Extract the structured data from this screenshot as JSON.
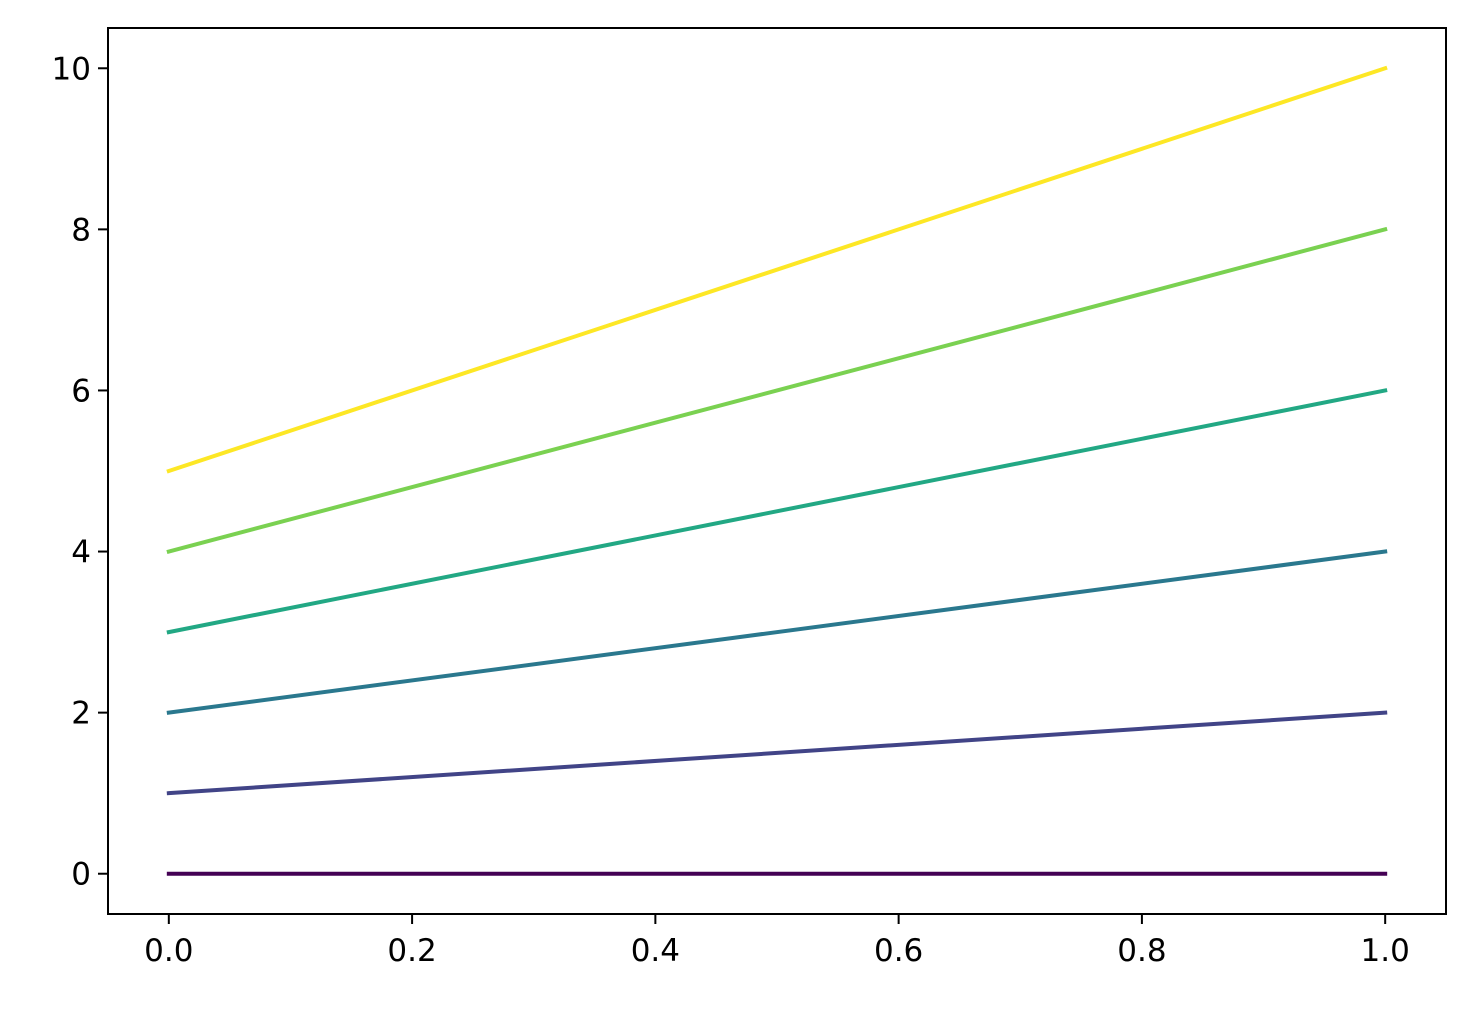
{
  "chart_data": {
    "type": "line",
    "title": "",
    "xlabel": "",
    "ylabel": "",
    "xlim": [
      -0.05,
      1.05
    ],
    "ylim": [
      -0.5,
      10.5
    ],
    "x_ticks": [
      {
        "value": 0.0,
        "label": "0.0"
      },
      {
        "value": 0.2,
        "label": "0.2"
      },
      {
        "value": 0.4,
        "label": "0.4"
      },
      {
        "value": 0.6,
        "label": "0.6"
      },
      {
        "value": 0.8,
        "label": "0.8"
      },
      {
        "value": 1.0,
        "label": "1.0"
      }
    ],
    "y_ticks": [
      {
        "value": 0,
        "label": "0"
      },
      {
        "value": 2,
        "label": "2"
      },
      {
        "value": 4,
        "label": "4"
      },
      {
        "value": 6,
        "label": "6"
      },
      {
        "value": 8,
        "label": "8"
      },
      {
        "value": 10,
        "label": "10"
      }
    ],
    "grid": false,
    "legend": false,
    "series": [
      {
        "x": [
          0,
          1
        ],
        "values": [
          0,
          0
        ],
        "color": "#440154"
      },
      {
        "x": [
          0,
          1
        ],
        "values": [
          1,
          2
        ],
        "color": "#414487"
      },
      {
        "x": [
          0,
          1
        ],
        "values": [
          2,
          4
        ],
        "color": "#2a788e"
      },
      {
        "x": [
          0,
          1
        ],
        "values": [
          3,
          6
        ],
        "color": "#22a884"
      },
      {
        "x": [
          0,
          1
        ],
        "values": [
          4,
          8
        ],
        "color": "#7ad151"
      },
      {
        "x": [
          0,
          1
        ],
        "values": [
          5,
          10
        ],
        "color": "#fde725"
      }
    ]
  }
}
